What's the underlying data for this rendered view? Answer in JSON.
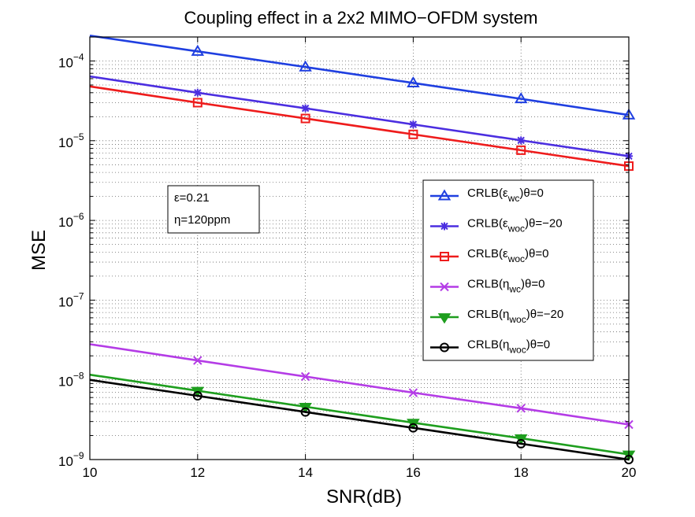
{
  "chart_data": {
    "type": "line",
    "title": "Coupling effect in a 2x2 MIMO−OFDM system",
    "xlabel": "SNR(dB)",
    "ylabel": "MSE",
    "xlim": [
      10,
      20
    ],
    "ylim": [
      1e-09,
      0.0002
    ],
    "yscale": "log",
    "grid": true,
    "x_ticks": [
      "10",
      "12",
      "14",
      "16",
      "18",
      "20"
    ],
    "y_ticks": [
      {
        "base": "10",
        "exp": "−9"
      },
      {
        "base": "10",
        "exp": "−8"
      },
      {
        "base": "10",
        "exp": "−7"
      },
      {
        "base": "10",
        "exp": "−6"
      },
      {
        "base": "10",
        "exp": "−5"
      },
      {
        "base": "10",
        "exp": "−4"
      }
    ],
    "annotation": [
      "ε=0.21",
      "η=120ppm"
    ],
    "legend_position": "right",
    "x": [
      10,
      12,
      14,
      16,
      18,
      20
    ],
    "series": [
      {
        "name": "CRLB(εwc)θ=0",
        "legend": {
          "pre": "CRLB(",
          "sym": "ε",
          "sub": "wc",
          "post": ")θ=0"
        },
        "color": "#1f3fe0",
        "marker": "triangle-up",
        "values": [
          0.000208,
          0.000132,
          8.4e-05,
          5.3e-05,
          3.35e-05,
          2.1e-05
        ]
      },
      {
        "name": "CRLB(εwoc)θ=−20",
        "legend": {
          "pre": "CRLB(",
          "sym": "ε",
          "sub": "woc",
          "post": ")θ=−20"
        },
        "color": "#4b2ee0",
        "marker": "star",
        "values": [
          6.4e-05,
          4e-05,
          2.55e-05,
          1.6e-05,
          1.01e-05,
          6.4e-06
        ]
      },
      {
        "name": "CRLB(εwoc)θ=0",
        "legend": {
          "pre": "CRLB(",
          "sym": "ε",
          "sub": "woc",
          "post": ")θ=0"
        },
        "color": "#ee1c1c",
        "marker": "square",
        "values": [
          4.8e-05,
          3e-05,
          1.9e-05,
          1.2e-05,
          7.6e-06,
          4.8e-06
        ]
      },
      {
        "name": "CRLB(ηwc)θ=0",
        "legend": {
          "pre": "CRLB(",
          "sym": "η",
          "sub": "wc",
          "post": ")θ=0"
        },
        "color": "#b43ce6",
        "marker": "x",
        "values": [
          2.8e-08,
          1.75e-08,
          1.1e-08,
          6.9e-09,
          4.4e-09,
          2.75e-09
        ]
      },
      {
        "name": "CRLB(ηwoc)θ=−20",
        "legend": {
          "pre": "CRLB(",
          "sym": "η",
          "sub": "woc",
          "post": ")θ=−20"
        },
        "color": "#1e9e1e",
        "marker": "triangle-down",
        "values": [
          1.16e-08,
          7.3e-09,
          4.6e-09,
          2.9e-09,
          1.85e-09,
          1.16e-09
        ]
      },
      {
        "name": "CRLB(ηwoc)θ=0",
        "legend": {
          "pre": "CRLB(",
          "sym": "η",
          "sub": "woc",
          "post": ")θ=0"
        },
        "color": "#000000",
        "marker": "circle",
        "values": [
          1e-08,
          6.3e-09,
          3.95e-09,
          2.5e-09,
          1.58e-09,
          1e-09
        ]
      }
    ]
  }
}
